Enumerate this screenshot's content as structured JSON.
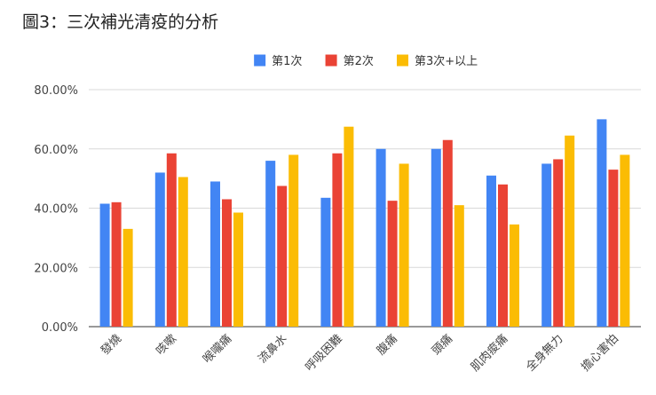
{
  "title": "圖3：三次補光清疫的分析",
  "chart_data": {
    "type": "bar",
    "categories": [
      "發燒",
      "咳嗽",
      "喉嚨痛",
      "流鼻水",
      "呼吸困難",
      "腹痛",
      "頭痛",
      "肌肉痠痛",
      "全身無力",
      "擔心害怕"
    ],
    "series": [
      {
        "name": "第1次",
        "color": "#4285F4",
        "values": [
          41.5,
          52.0,
          49.0,
          56.0,
          43.5,
          60.0,
          60.0,
          51.0,
          55.0,
          70.0
        ]
      },
      {
        "name": "第2次",
        "color": "#EA4335",
        "values": [
          42.0,
          58.5,
          43.0,
          47.5,
          58.5,
          42.5,
          63.0,
          48.0,
          56.5,
          53.0
        ]
      },
      {
        "name": "第3次+以上",
        "color": "#FBBC04",
        "values": [
          33.0,
          50.5,
          38.5,
          58.0,
          67.5,
          55.0,
          41.0,
          34.5,
          64.5,
          58.0
        ]
      }
    ],
    "y_ticks": [
      "0.00%",
      "20.00%",
      "40.00%",
      "60.00%",
      "80.00%"
    ],
    "ylim": [
      0,
      80
    ],
    "grid": true,
    "legend_position": "top"
  }
}
